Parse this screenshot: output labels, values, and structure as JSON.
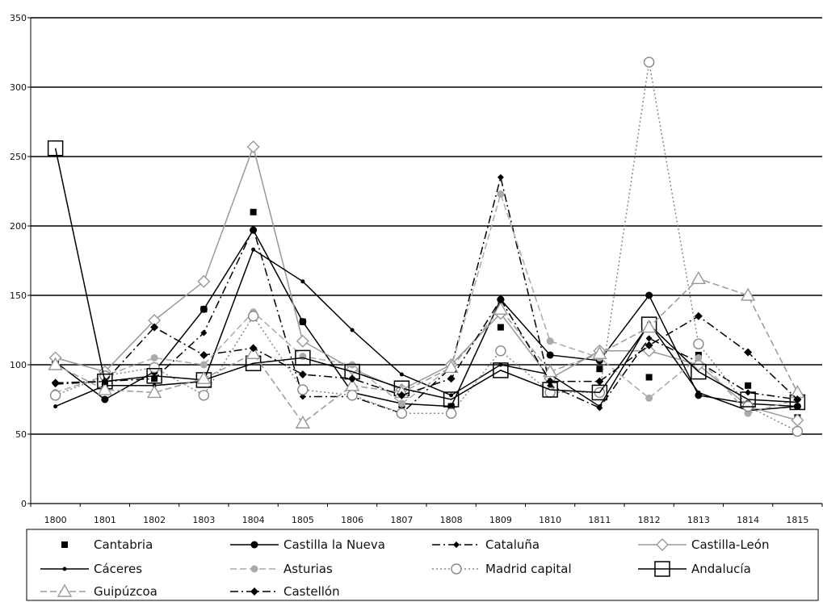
{
  "chart_data": {
    "type": "line",
    "title": "",
    "xlabel": "",
    "ylabel": "",
    "categories": [
      "1800",
      "1801",
      "1802",
      "1803",
      "1804",
      "1805",
      "1806",
      "1807",
      "1808",
      "1809",
      "1810",
      "1811",
      "1812",
      "1813",
      "1814",
      "1815"
    ],
    "y_ticks": [
      "0",
      "50",
      "100",
      "150",
      "200",
      "250",
      "300",
      "350"
    ],
    "ylim": [
      0,
      350
    ],
    "grid": "horizontal",
    "legend_position": "bottom",
    "series": [
      {
        "name": "Cantabria",
        "color": "#000000",
        "marker": "square-filled",
        "dash": "none",
        "values": [
          null,
          85,
          90,
          140,
          210,
          131,
          80,
          71,
          70,
          127,
          80,
          97,
          91,
          107,
          85,
          62
        ]
      },
      {
        "name": "Castilla la Nueva",
        "color": "#000000",
        "marker": "circle-filled",
        "dash": "solid",
        "values": [
          102,
          75,
          95,
          140,
          197,
          131,
          80,
          72,
          70,
          147,
          107,
          103,
          150,
          78,
          72,
          70
        ]
      },
      {
        "name": "Cataluña",
        "color": "#000000",
        "marker": "diamond-small",
        "dash": "dashdot",
        "values": [
          86,
          88,
          90,
          123,
          198,
          77,
          77,
          65,
          98,
          235,
          85,
          69,
          119,
          102,
          80,
          75
        ]
      },
      {
        "name": "Castilla-León",
        "color": "#999999",
        "marker": "diamond-open",
        "dash": "solid",
        "values": [
          105,
          95,
          132,
          160,
          257,
          117,
          97,
          82,
          100,
          137,
          90,
          110,
          110,
          100,
          70,
          60
        ]
      },
      {
        "name": "Cáceres",
        "color": "#000000",
        "marker": "dot",
        "dash": "solid",
        "values": [
          70,
          85,
          85,
          88,
          183,
          160,
          125,
          93,
          78,
          100,
          93,
          70,
          130,
          80,
          67,
          70
        ]
      },
      {
        "name": "Asturias",
        "color": "#aaaaaa",
        "marker": "circle-filled",
        "dash": "dashed",
        "values": [
          80,
          92,
          105,
          100,
          138,
          106,
          100,
          72,
          98,
          223,
          117,
          105,
          76,
          105,
          65,
          75
        ]
      },
      {
        "name": "Madrid capital",
        "color": "#888888",
        "marker": "circle-open",
        "dash": "dotted",
        "values": [
          78,
          92,
          98,
          78,
          135,
          82,
          78,
          65,
          65,
          110,
          80,
          80,
          318,
          115,
          70,
          52
        ]
      },
      {
        "name": "Andalucía",
        "color": "#000000",
        "marker": "square-open",
        "dash": "solid",
        "values": [
          256,
          88,
          92,
          89,
          101,
          105,
          95,
          83,
          75,
          96,
          82,
          80,
          129,
          95,
          75,
          73
        ]
      },
      {
        "name": "Guipúzcoa",
        "color": "#999999",
        "marker": "triangle-open",
        "dash": "dashed",
        "values": [
          100,
          82,
          80,
          90,
          108,
          58,
          85,
          80,
          98,
          140,
          95,
          108,
          127,
          162,
          150,
          80
        ]
      },
      {
        "name": "Castellón",
        "color": "#000000",
        "marker": "diamond-filled",
        "dash": "dashdot",
        "values": [
          87,
          88,
          127,
          107,
          112,
          93,
          90,
          78,
          90,
          147,
          88,
          88,
          114,
          135,
          109,
          75
        ]
      }
    ]
  }
}
